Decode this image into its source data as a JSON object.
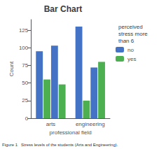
{
  "chart_data": {
    "type": "bar",
    "title": "Bar Chart",
    "xlabel": "professional field",
    "ylabel": "Count",
    "categories": [
      "arts",
      "engineering"
    ],
    "series": [
      {
        "name": "no",
        "color": "#4472C4",
        "values": [
          95,
          130
        ]
      },
      {
        "name": "yes",
        "color": "#4CAF50",
        "values": [
          55,
          25
        ]
      },
      {
        "name": "no",
        "color": "#4472C4",
        "values": [
          103,
          72
        ]
      },
      {
        "name": "yes",
        "color": "#4CAF50",
        "values": [
          48,
          80
        ]
      }
    ],
    "legend_title": "perceived\nstress more\nthan 6",
    "caption": "Figure 1   Stress levels of the students (Arts and Engineering).",
    "ylim": [
      0,
      140
    ],
    "yticks": [
      0,
      25,
      50,
      75,
      100,
      125
    ],
    "grid": false,
    "legend": "right"
  }
}
